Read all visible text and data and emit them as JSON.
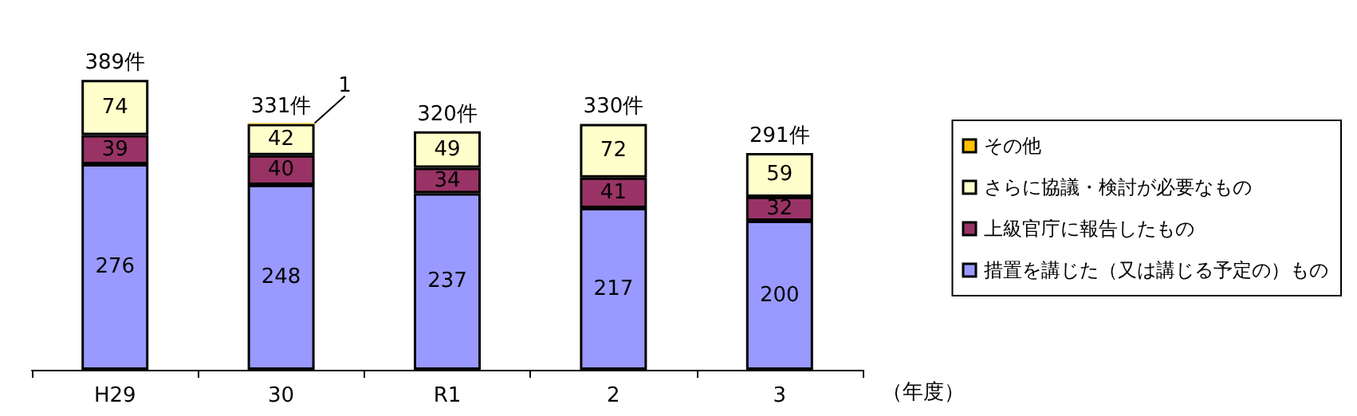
{
  "chart_data": {
    "type": "bar",
    "stacked": true,
    "categories": [
      "H29",
      "30",
      "R1",
      "2",
      "3"
    ],
    "xlabel": "（年度）",
    "series": [
      {
        "name": "措置を講じた（又は講じる予定の）もの",
        "color": "#9999ff",
        "values": [
          276,
          248,
          237,
          217,
          200
        ],
        "value_labels": [
          "276",
          "248",
          "237",
          "217",
          "200"
        ]
      },
      {
        "name": "上級官庁に報告したもの",
        "color": "#993366",
        "values": [
          39,
          40,
          34,
          41,
          32
        ],
        "value_labels": [
          "39",
          "40",
          "34",
          "41",
          "32"
        ]
      },
      {
        "name": "さらに協議・検討が必要なもの",
        "color": "#ffffcc",
        "values": [
          74,
          42,
          49,
          72,
          59
        ],
        "value_labels": [
          "74",
          "42",
          "49",
          "72",
          "59"
        ]
      },
      {
        "name": "その他",
        "color": "#ffc000",
        "values": [
          0,
          1,
          0,
          0,
          0
        ],
        "value_labels": [
          null,
          "1",
          null,
          null,
          null
        ]
      }
    ],
    "totals": [
      "389件",
      "331件",
      "320件",
      "330件",
      "291件"
    ],
    "legend": "right"
  }
}
